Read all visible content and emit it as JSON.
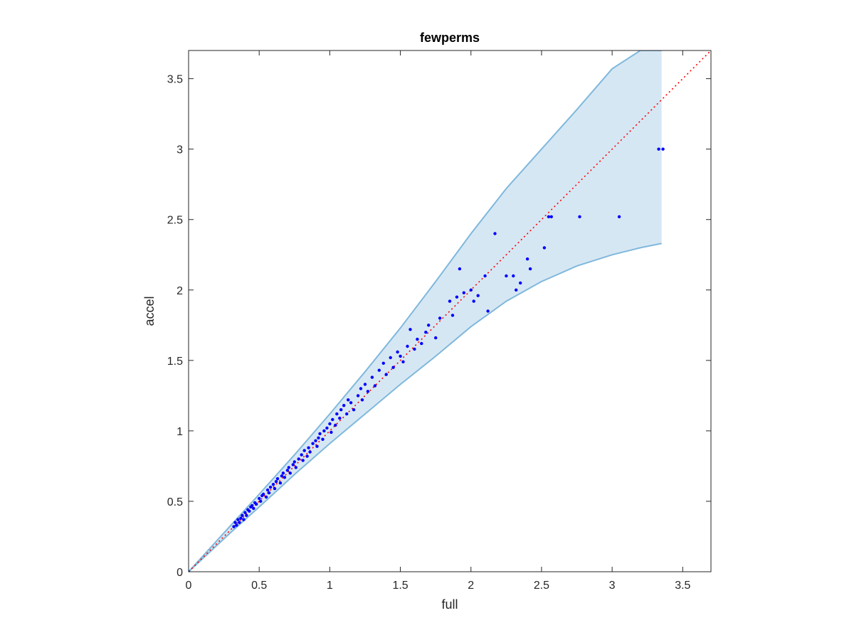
{
  "chart_data": {
    "type": "scatter",
    "title": "fewperms",
    "xlabel": "full",
    "ylabel": "accel",
    "xlim": [
      0,
      3.7
    ],
    "ylim": [
      0,
      3.7
    ],
    "xticks": [
      0,
      0.5,
      1,
      1.5,
      2,
      2.5,
      3,
      3.5
    ],
    "yticks": [
      0,
      0.5,
      1,
      1.5,
      2,
      2.5,
      3,
      3.5
    ],
    "xtick_labels": [
      "0",
      "0.5",
      "1",
      "1.5",
      "2",
      "2.5",
      "3",
      "3.5"
    ],
    "ytick_labels": [
      "0",
      "0.5",
      "1",
      "1.5",
      "2",
      "2.5",
      "3",
      "3.5"
    ],
    "grid": false,
    "legend": "none",
    "colors": {
      "points": "#0000ff",
      "band_fill": "#d6e7f4",
      "band_edge": "#7fb8dc",
      "reference_line": "#ff0000",
      "axes": "#262626"
    },
    "reference_line": {
      "style": "dotted",
      "x": [
        0,
        3.7
      ],
      "y": [
        0,
        3.7
      ]
    },
    "band": {
      "x": [
        0,
        0.3,
        0.5,
        0.75,
        1.0,
        1.25,
        1.5,
        1.75,
        2.0,
        2.25,
        2.5,
        2.75,
        3.0,
        3.2,
        3.35
      ],
      "upper": [
        0,
        0.33,
        0.55,
        0.83,
        1.12,
        1.42,
        1.73,
        2.06,
        2.4,
        2.72,
        3.0,
        3.28,
        3.57,
        3.7,
        3.7
      ],
      "lower": [
        0,
        0.28,
        0.46,
        0.69,
        0.91,
        1.12,
        1.33,
        1.53,
        1.74,
        1.92,
        2.06,
        2.17,
        2.25,
        2.3,
        2.33
      ]
    },
    "points": {
      "x": [
        0,
        0.32,
        0.33,
        0.34,
        0.35,
        0.36,
        0.37,
        0.38,
        0.39,
        0.4,
        0.41,
        0.42,
        0.43,
        0.44,
        0.45,
        0.46,
        0.47,
        0.48,
        0.5,
        0.51,
        0.52,
        0.53,
        0.55,
        0.56,
        0.57,
        0.58,
        0.6,
        0.61,
        0.62,
        0.63,
        0.65,
        0.66,
        0.67,
        0.68,
        0.7,
        0.71,
        0.72,
        0.74,
        0.75,
        0.76,
        0.78,
        0.8,
        0.81,
        0.82,
        0.84,
        0.85,
        0.86,
        0.88,
        0.9,
        0.91,
        0.92,
        0.93,
        0.95,
        0.96,
        0.98,
        1.0,
        1.01,
        1.02,
        1.04,
        1.05,
        1.07,
        1.08,
        1.1,
        1.12,
        1.13,
        1.15,
        1.17,
        1.2,
        1.22,
        1.23,
        1.25,
        1.27,
        1.3,
        1.32,
        1.35,
        1.38,
        1.4,
        1.43,
        1.45,
        1.48,
        1.5,
        1.52,
        1.55,
        1.57,
        1.6,
        1.62,
        1.65,
        1.68,
        1.7,
        1.75,
        1.78,
        1.85,
        1.87,
        1.9,
        1.92,
        1.95,
        2.0,
        2.02,
        2.05,
        2.1,
        2.12,
        2.17,
        2.25,
        2.3,
        2.32,
        2.35,
        2.4,
        2.42,
        2.52,
        2.55,
        2.57,
        2.77,
        3.05,
        3.33,
        3.36
      ],
      "y": [
        0,
        0.32,
        0.35,
        0.33,
        0.37,
        0.35,
        0.38,
        0.4,
        0.37,
        0.42,
        0.4,
        0.44,
        0.43,
        0.46,
        0.47,
        0.45,
        0.49,
        0.48,
        0.52,
        0.5,
        0.54,
        0.55,
        0.53,
        0.58,
        0.56,
        0.6,
        0.62,
        0.59,
        0.64,
        0.66,
        0.63,
        0.68,
        0.7,
        0.67,
        0.72,
        0.74,
        0.7,
        0.76,
        0.78,
        0.74,
        0.8,
        0.83,
        0.79,
        0.86,
        0.82,
        0.88,
        0.85,
        0.91,
        0.93,
        0.89,
        0.95,
        0.98,
        0.94,
        1.0,
        1.02,
        1.05,
        0.99,
        1.08,
        1.04,
        1.12,
        1.09,
        1.15,
        1.18,
        1.12,
        1.22,
        1.2,
        1.15,
        1.25,
        1.3,
        1.22,
        1.33,
        1.28,
        1.38,
        1.32,
        1.43,
        1.48,
        1.4,
        1.52,
        1.45,
        1.56,
        1.53,
        1.49,
        1.6,
        1.72,
        1.58,
        1.65,
        1.62,
        1.7,
        1.75,
        1.66,
        1.8,
        1.92,
        1.82,
        1.95,
        2.15,
        1.98,
        2.0,
        1.92,
        1.96,
        2.1,
        1.85,
        2.4,
        2.1,
        2.1,
        2.0,
        2.05,
        2.22,
        2.15,
        2.3,
        2.52,
        2.52,
        2.52,
        2.52,
        3.0,
        3.0
      ]
    }
  }
}
